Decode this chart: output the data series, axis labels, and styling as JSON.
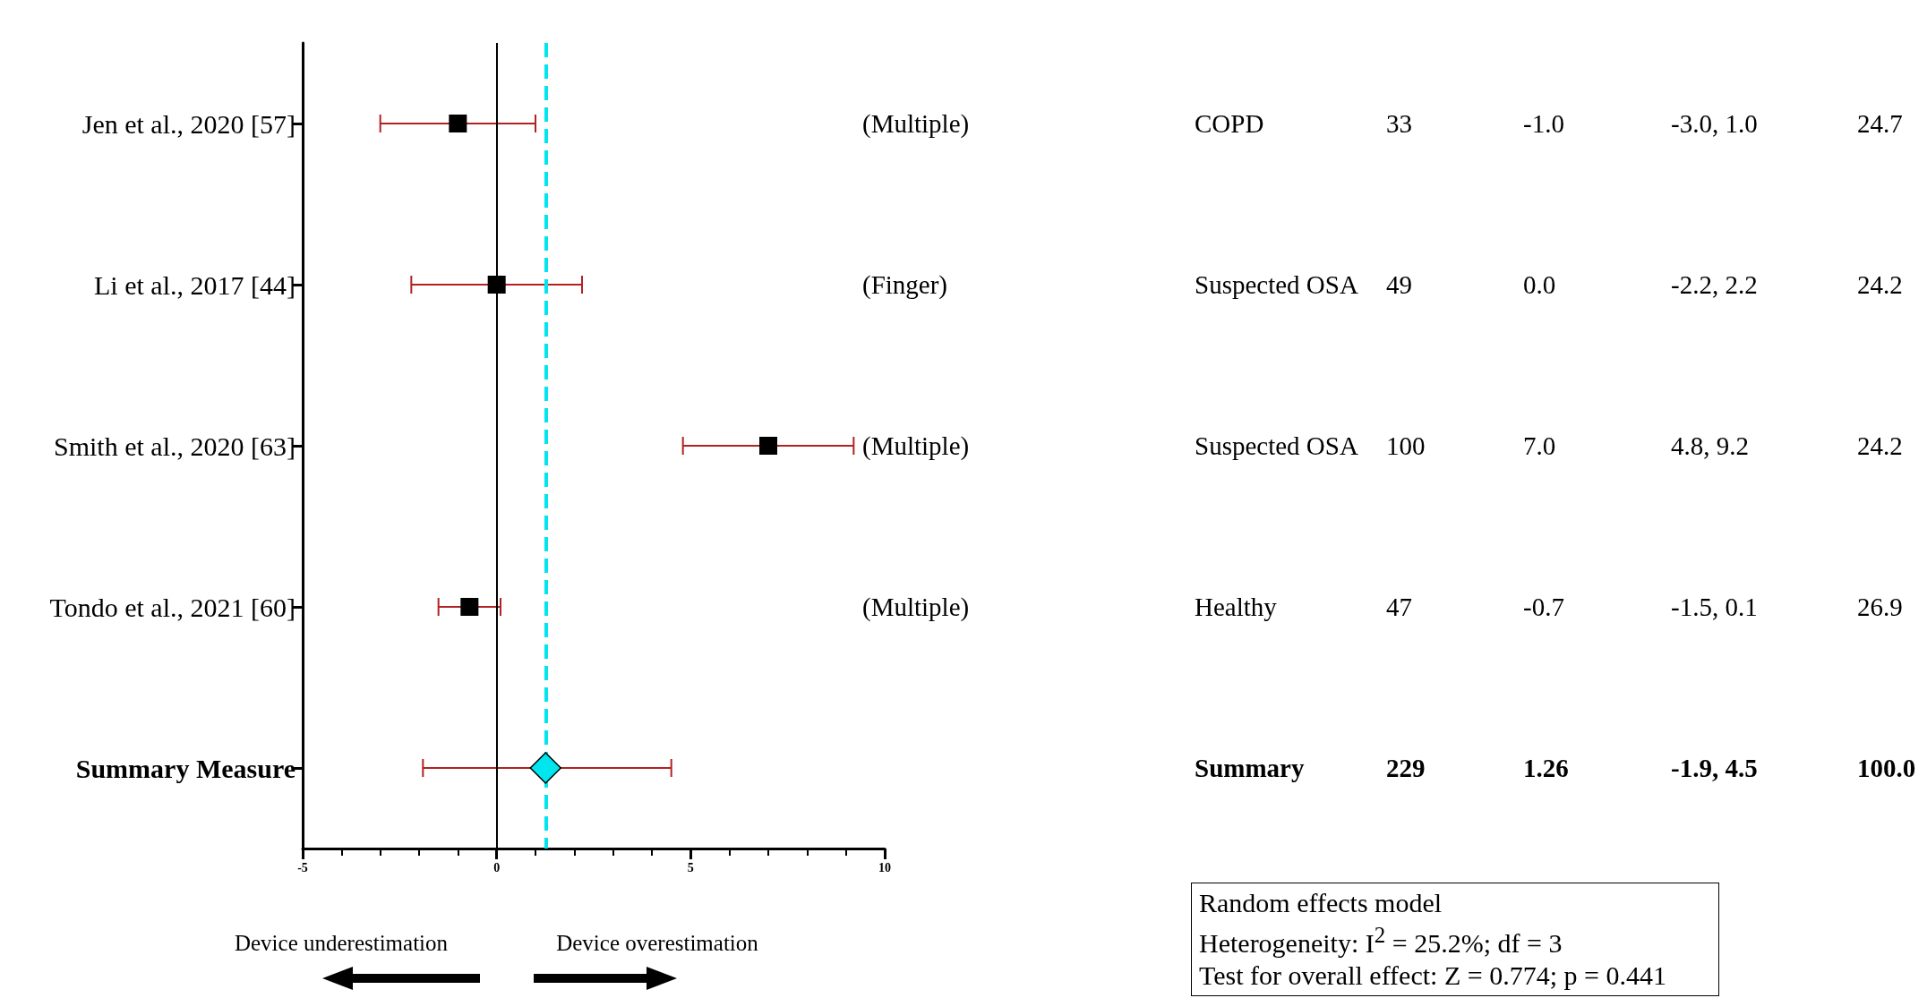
{
  "chart_data": {
    "type": "scatter",
    "orientation": "horizontal",
    "categories": [
      "Jen et al., 2020 [57]",
      "Li et al., 2017 [44]",
      "Smith et al., 2020 [63]",
      "Tondo et al., 2021 [60]",
      "Summary Measure"
    ],
    "series": [
      {
        "color": "#000000",
        "marker": "square",
        "values": [
          -1.0,
          0.0,
          7.0,
          -0.7,
          null
        ],
        "errors": [
          [
            -3.0,
            1.0
          ],
          [
            -2.2,
            2.2
          ],
          [
            4.8,
            9.2
          ],
          [
            -1.5,
            0.1
          ],
          null
        ]
      },
      {
        "color": "#00e5ee",
        "marker": "diamond",
        "values": [
          null,
          null,
          null,
          null,
          1.26
        ],
        "errors": [
          null,
          null,
          null,
          null,
          [
            -1.9,
            4.5
          ]
        ]
      }
    ],
    "xlim": [
      -5,
      10
    ],
    "xticks": [
      -5,
      0,
      5,
      10
    ],
    "ref_lines": [
      {
        "axis": "x",
        "value": 0,
        "color": "#000000",
        "line_style": "solid"
      },
      {
        "axis": "x",
        "value": 1.26,
        "color": "#00e5ee",
        "line_style": "dashed"
      }
    ],
    "grid": false,
    "annotations": [
      "(Multiple)",
      "COPD",
      "33",
      "-1.0",
      "-3.0, 1.0",
      "24.7",
      "(Finger)",
      "Suspected OSA",
      "49",
      "0.0",
      "-2.2, 2.2",
      "24.2",
      "(Multiple)",
      "Suspected OSA",
      "100",
      "7.0",
      "4.8, 9.2",
      "24.2",
      "(Multiple)",
      "Healthy",
      "47",
      "-0.7",
      "-1.5, 0.1",
      "26.9",
      "Summary",
      "229",
      "1.26",
      "-1.9, 4.5",
      "100.0",
      "Random effects model",
      "Heterogeneity: I$^{2}$ = 25.2%; df = 3",
      "Test for overall effect: Z = 0.774; p = 0.441",
      "Device underestimation",
      "Device overestimation"
    ]
  }
}
